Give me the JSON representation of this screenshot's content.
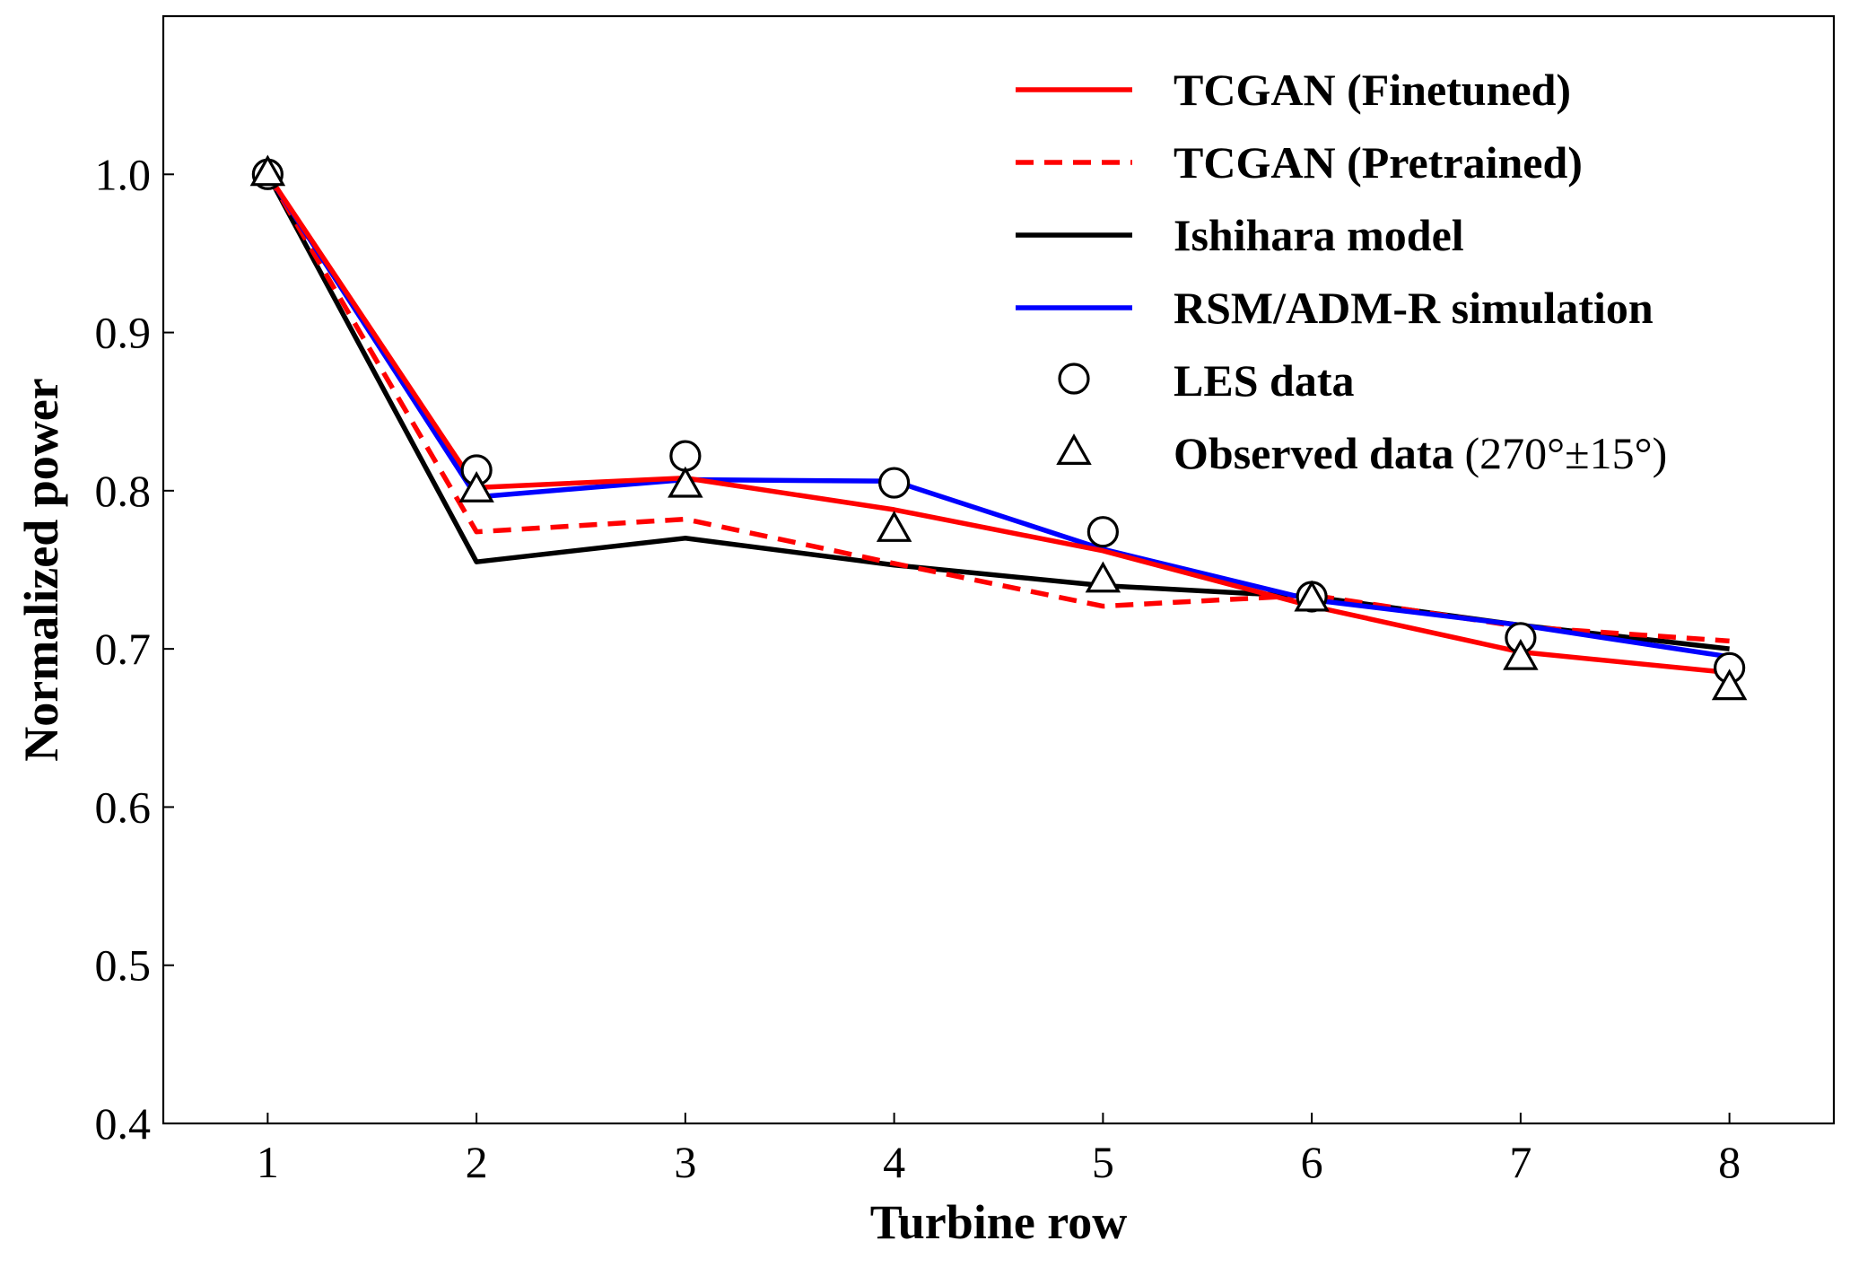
{
  "chart_data": {
    "type": "line",
    "xlabel": "Turbine row",
    "ylabel": "Normalized power",
    "x": [
      1,
      2,
      3,
      4,
      5,
      6,
      7,
      8
    ],
    "xlim": [
      0.5,
      8.5
    ],
    "ylim": [
      0.4,
      1.1
    ],
    "xticks": [
      "1",
      "2",
      "3",
      "4",
      "5",
      "6",
      "7",
      "8"
    ],
    "yticks": [
      "0.4",
      "0.5",
      "0.6",
      "0.7",
      "0.8",
      "0.9",
      "1.0"
    ],
    "grid": false,
    "legend_position": "top-right",
    "series": [
      {
        "name": "TCGAN (Finetuned)",
        "style": "solid",
        "color": "#ff0000",
        "values": [
          1.0,
          0.802,
          0.808,
          0.788,
          0.762,
          0.727,
          0.698,
          0.685
        ]
      },
      {
        "name": "TCGAN (Pretrained)",
        "style": "dashed",
        "color": "#ff0000",
        "values": [
          1.0,
          0.774,
          0.782,
          0.754,
          0.727,
          0.734,
          0.714,
          0.705
        ]
      },
      {
        "name": "Ishihara model",
        "style": "solid",
        "color": "#000000",
        "values": [
          1.0,
          0.755,
          0.77,
          0.753,
          0.74,
          0.733,
          0.715,
          0.7
        ]
      },
      {
        "name": "RSM/ADM-R simulation",
        "style": "solid",
        "color": "#0000ff",
        "values": [
          1.0,
          0.796,
          0.807,
          0.806,
          0.763,
          0.731,
          0.715,
          0.695
        ]
      },
      {
        "name": "LES data",
        "style": "marker",
        "marker": "circle",
        "color": "#000000",
        "values": [
          1.0,
          0.813,
          0.822,
          0.805,
          0.774,
          0.733,
          0.707,
          0.688
        ]
      },
      {
        "name": "Observed data",
        "name_suffix": "(270°±15°)",
        "style": "marker",
        "marker": "triangle",
        "color": "#000000",
        "values": [
          1.0,
          0.8,
          0.803,
          0.775,
          0.743,
          0.731,
          0.694,
          0.675
        ]
      }
    ]
  }
}
